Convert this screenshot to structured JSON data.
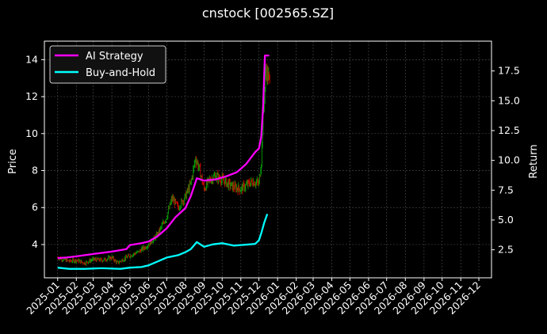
{
  "chart_data": {
    "type": "line",
    "title": "cnstock [002565.SZ]",
    "ylabel_left": "Price",
    "ylabel_right": "Return",
    "grid": true,
    "legend_placement": "top-left",
    "ylim_left": [
      2.2,
      15
    ],
    "ylim_right": [
      0.15,
      20.0
    ],
    "y_ticks_left": [
      4,
      6,
      8,
      10,
      12,
      14
    ],
    "y_ticks_right": [
      2.5,
      5.0,
      7.5,
      10.0,
      12.5,
      15.0,
      17.5
    ],
    "y_tick_labels_left": [
      "4",
      "6",
      "8",
      "10",
      "12",
      "14"
    ],
    "y_tick_labels_right": [
      "2.5",
      "5.0",
      "7.5",
      "10.0",
      "12.5",
      "15.0",
      "17.5"
    ],
    "x_tick_labels": [
      "2025-01",
      "2025-02",
      "2025-03",
      "2025-04",
      "2025-05",
      "2025-06",
      "2025-07",
      "2025-08",
      "2025-09",
      "2025-10",
      "2025-11",
      "2025-12",
      "2026-01",
      "2026-02",
      "2026-03",
      "2026-04",
      "2026-05",
      "2026-06",
      "2026-07",
      "2026-08",
      "2026-09",
      "2026-10",
      "2026-11",
      "2026-12"
    ],
    "colors": {
      "background": "#000000",
      "grid": "#444444",
      "ai_strategy": "#ff00ff",
      "buy_and_hold": "#00ffff",
      "candle_up": "#00a000",
      "candle_down": "#d00000"
    },
    "price_points": [
      [
        "2025-01-01",
        3.3
      ],
      [
        "2025-01-10",
        3.2
      ],
      [
        "2025-01-20",
        3.1
      ],
      [
        "2025-02-01",
        3.15
      ],
      [
        "2025-02-15",
        3.0
      ],
      [
        "2025-03-01",
        3.2
      ],
      [
        "2025-03-15",
        3.15
      ],
      [
        "2025-04-01",
        3.3
      ],
      [
        "2025-04-10",
        3.0
      ],
      [
        "2025-04-20",
        3.2
      ],
      [
        "2025-05-01",
        3.4
      ],
      [
        "2025-05-15",
        3.6
      ],
      [
        "2025-06-01",
        4.0
      ],
      [
        "2025-06-15",
        4.5
      ],
      [
        "2025-07-01",
        5.5
      ],
      [
        "2025-07-10",
        6.5
      ],
      [
        "2025-07-20",
        6.0
      ],
      [
        "2025-08-01",
        6.6
      ],
      [
        "2025-08-10",
        7.3
      ],
      [
        "2025-08-18",
        8.7
      ],
      [
        "2025-08-25",
        8.0
      ],
      [
        "2025-09-01",
        7.0
      ],
      [
        "2025-09-10",
        7.5
      ],
      [
        "2025-09-20",
        7.7
      ],
      [
        "2025-10-01",
        7.5
      ],
      [
        "2025-10-10",
        7.3
      ],
      [
        "2025-10-20",
        7.1
      ],
      [
        "2025-11-01",
        7.0
      ],
      [
        "2025-11-10",
        7.2
      ],
      [
        "2025-11-20",
        7.4
      ],
      [
        "2025-12-01",
        7.3
      ],
      [
        "2025-12-05",
        8.5
      ],
      [
        "2025-12-08",
        11.0
      ],
      [
        "2025-12-10",
        12.0
      ],
      [
        "2025-12-13",
        13.5
      ],
      [
        "2025-12-16",
        13.1
      ],
      [
        "2025-12-19",
        12.8
      ]
    ],
    "series": [
      {
        "name": "AI Strategy",
        "points": [
          [
            "2025-01-01",
            1.8
          ],
          [
            "2025-01-15",
            1.85
          ],
          [
            "2025-02-01",
            1.95
          ],
          [
            "2025-03-01",
            2.15
          ],
          [
            "2025-04-01",
            2.35
          ],
          [
            "2025-04-25",
            2.55
          ],
          [
            "2025-05-01",
            2.9
          ],
          [
            "2025-05-20",
            3.05
          ],
          [
            "2025-06-01",
            3.2
          ],
          [
            "2025-06-15",
            3.6
          ],
          [
            "2025-07-01",
            4.3
          ],
          [
            "2025-07-15",
            5.2
          ],
          [
            "2025-08-01",
            6.0
          ],
          [
            "2025-08-10",
            7.0
          ],
          [
            "2025-08-20",
            8.5
          ],
          [
            "2025-09-01",
            8.3
          ],
          [
            "2025-09-20",
            8.4
          ],
          [
            "2025-10-10",
            8.7
          ],
          [
            "2025-10-25",
            9.0
          ],
          [
            "2025-11-01",
            9.3
          ],
          [
            "2025-11-10",
            9.7
          ],
          [
            "2025-11-25",
            10.7
          ],
          [
            "2025-12-01",
            11.0
          ],
          [
            "2025-12-05",
            12.0
          ],
          [
            "2025-12-08",
            14.5
          ],
          [
            "2025-12-11",
            18.8
          ],
          [
            "2025-12-18",
            18.8
          ]
        ]
      },
      {
        "name": "Buy-and-Hold",
        "points": [
          [
            "2025-01-01",
            1.0
          ],
          [
            "2025-01-20",
            0.9
          ],
          [
            "2025-02-15",
            0.9
          ],
          [
            "2025-03-15",
            0.95
          ],
          [
            "2025-04-15",
            0.9
          ],
          [
            "2025-05-01",
            1.0
          ],
          [
            "2025-05-20",
            1.05
          ],
          [
            "2025-06-01",
            1.2
          ],
          [
            "2025-06-15",
            1.5
          ],
          [
            "2025-07-01",
            1.85
          ],
          [
            "2025-07-20",
            2.05
          ],
          [
            "2025-08-01",
            2.3
          ],
          [
            "2025-08-10",
            2.55
          ],
          [
            "2025-08-20",
            3.15
          ],
          [
            "2025-09-01",
            2.75
          ],
          [
            "2025-09-15",
            2.95
          ],
          [
            "2025-10-01",
            3.05
          ],
          [
            "2025-10-20",
            2.85
          ],
          [
            "2025-11-01",
            2.9
          ],
          [
            "2025-11-15",
            2.95
          ],
          [
            "2025-11-25",
            3.0
          ],
          [
            "2025-12-01",
            3.3
          ],
          [
            "2025-12-05",
            3.9
          ],
          [
            "2025-12-10",
            4.8
          ],
          [
            "2025-12-15",
            5.5
          ]
        ]
      }
    ]
  }
}
